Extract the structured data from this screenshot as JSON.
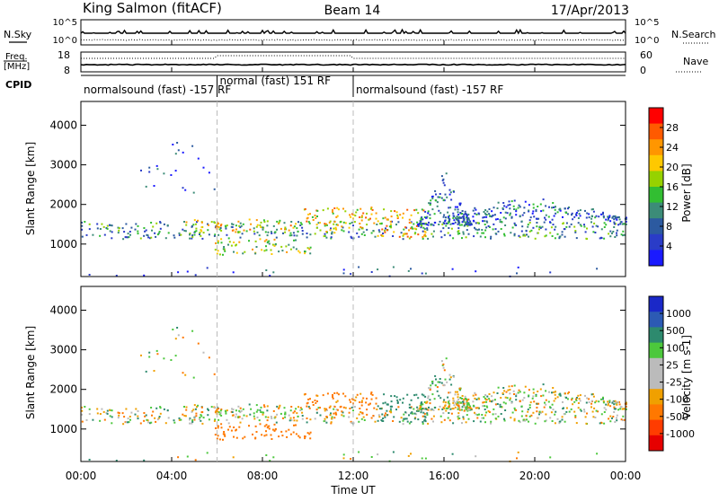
{
  "header": {
    "station": "King Salmon (fitACF)",
    "beam": "Beam 14",
    "date": "17/Apr/2013"
  },
  "noise_panel": {
    "left_label": "N.Sky",
    "right_label": "N.Search",
    "left_ticks": [
      "10^5",
      "10^0"
    ],
    "right_ticks": [
      "10^5",
      "10^0"
    ]
  },
  "freq_panel": {
    "left_label_1": "Freq.",
    "left_label_2": "[MHz]",
    "right_label": "Nave",
    "left_ticks": [
      "18",
      "8"
    ],
    "right_ticks": [
      "60",
      "0"
    ]
  },
  "cpid": {
    "label": "CPID",
    "segments": [
      {
        "start_hour": 0,
        "end_hour": 6,
        "text": "normalsound (fast) -157 RF"
      },
      {
        "start_hour": 6,
        "end_hour": 12,
        "text": "normal (fast) 151 RF"
      },
      {
        "start_hour": 12,
        "end_hour": 24,
        "text": "normalsound (fast) -157 RF"
      }
    ]
  },
  "axes": {
    "ylabel": "Slant Range [km]",
    "xlabel": "Time UT",
    "y_ticks": [
      "1000",
      "2000",
      "3000",
      "4000"
    ],
    "x_ticks": [
      "00:00",
      "04:00",
      "08:00",
      "12:00",
      "16:00",
      "20:00",
      "00:00"
    ]
  },
  "power_colorbar": {
    "label": "Power [dB]",
    "ticks": [
      "28",
      "24",
      "20",
      "16",
      "12",
      "8",
      "4"
    ],
    "colors": [
      "#ff0000",
      "#ff5a00",
      "#ff9600",
      "#ffc800",
      "#96d200",
      "#32be32",
      "#3c8c78",
      "#2c5aa0",
      "#2a3cc8",
      "#1a1aff"
    ]
  },
  "velocity_colorbar": {
    "label": "Velocity [m s-1]",
    "ticks": [
      "1000",
      "500",
      "100",
      "25",
      "-25",
      "-100",
      "-500",
      "-1000"
    ],
    "colors": [
      "#1a28c8",
      "#2c5ab4",
      "#2d8a6e",
      "#4cc83c",
      "#bbbbbb",
      "#bbbbbb",
      "#f0a000",
      "#ff7800",
      "#ff3c00",
      "#e60000"
    ]
  },
  "chart_data": {
    "type": "heatmap",
    "x_range_hours": [
      0,
      24
    ],
    "y_range_km": [
      180,
      4600
    ],
    "fields": [
      "power",
      "velocity"
    ],
    "power_range_db": [
      0,
      30
    ],
    "velocity_range": [
      -1000,
      1000
    ],
    "scatter_regions": [
      {
        "name": "main-band",
        "t_start": 0,
        "t_end": 24,
        "range_km": [
          1150,
          1600
        ],
        "power_db": 10,
        "velocity": 0
      },
      {
        "name": "strong-6-9",
        "t_start": 4.5,
        "t_end": 9.5,
        "range_km": [
          1300,
          1650
        ],
        "power_db": 18,
        "velocity": -25
      },
      {
        "name": "low-6-10",
        "t_start": 5.8,
        "t_end": 10.2,
        "range_km": [
          750,
          1150
        ],
        "power_db": 16,
        "velocity": -350
      },
      {
        "name": "strong-10-13",
        "t_start": 9.8,
        "t_end": 13.0,
        "range_km": [
          1300,
          1950
        ],
        "power_db": 20,
        "velocity": -200
      },
      {
        "name": "strong-13-15",
        "t_start": 13.0,
        "t_end": 15.2,
        "range_km": [
          1200,
          1900
        ],
        "power_db": 20,
        "velocity": 300
      },
      {
        "name": "arc-15-17",
        "t_start": 14.8,
        "t_end": 17.2,
        "range_km": [
          1500,
          3000
        ],
        "power_db": 8,
        "velocity": 25
      },
      {
        "name": "band-16-24",
        "t_start": 16,
        "t_end": 24,
        "range_km": [
          1500,
          2200
        ],
        "power_db": 7,
        "velocity": 0
      },
      {
        "name": "sparse-high-2-6",
        "t_start": 2.5,
        "t_end": 6,
        "range_km": [
          2300,
          3600
        ],
        "power_db": 5,
        "velocity": 0
      },
      {
        "name": "gs-noise",
        "t_start": 0,
        "t_end": 24,
        "range_km": [
          200,
          450
        ],
        "power_db": 5,
        "velocity": 0
      }
    ]
  }
}
